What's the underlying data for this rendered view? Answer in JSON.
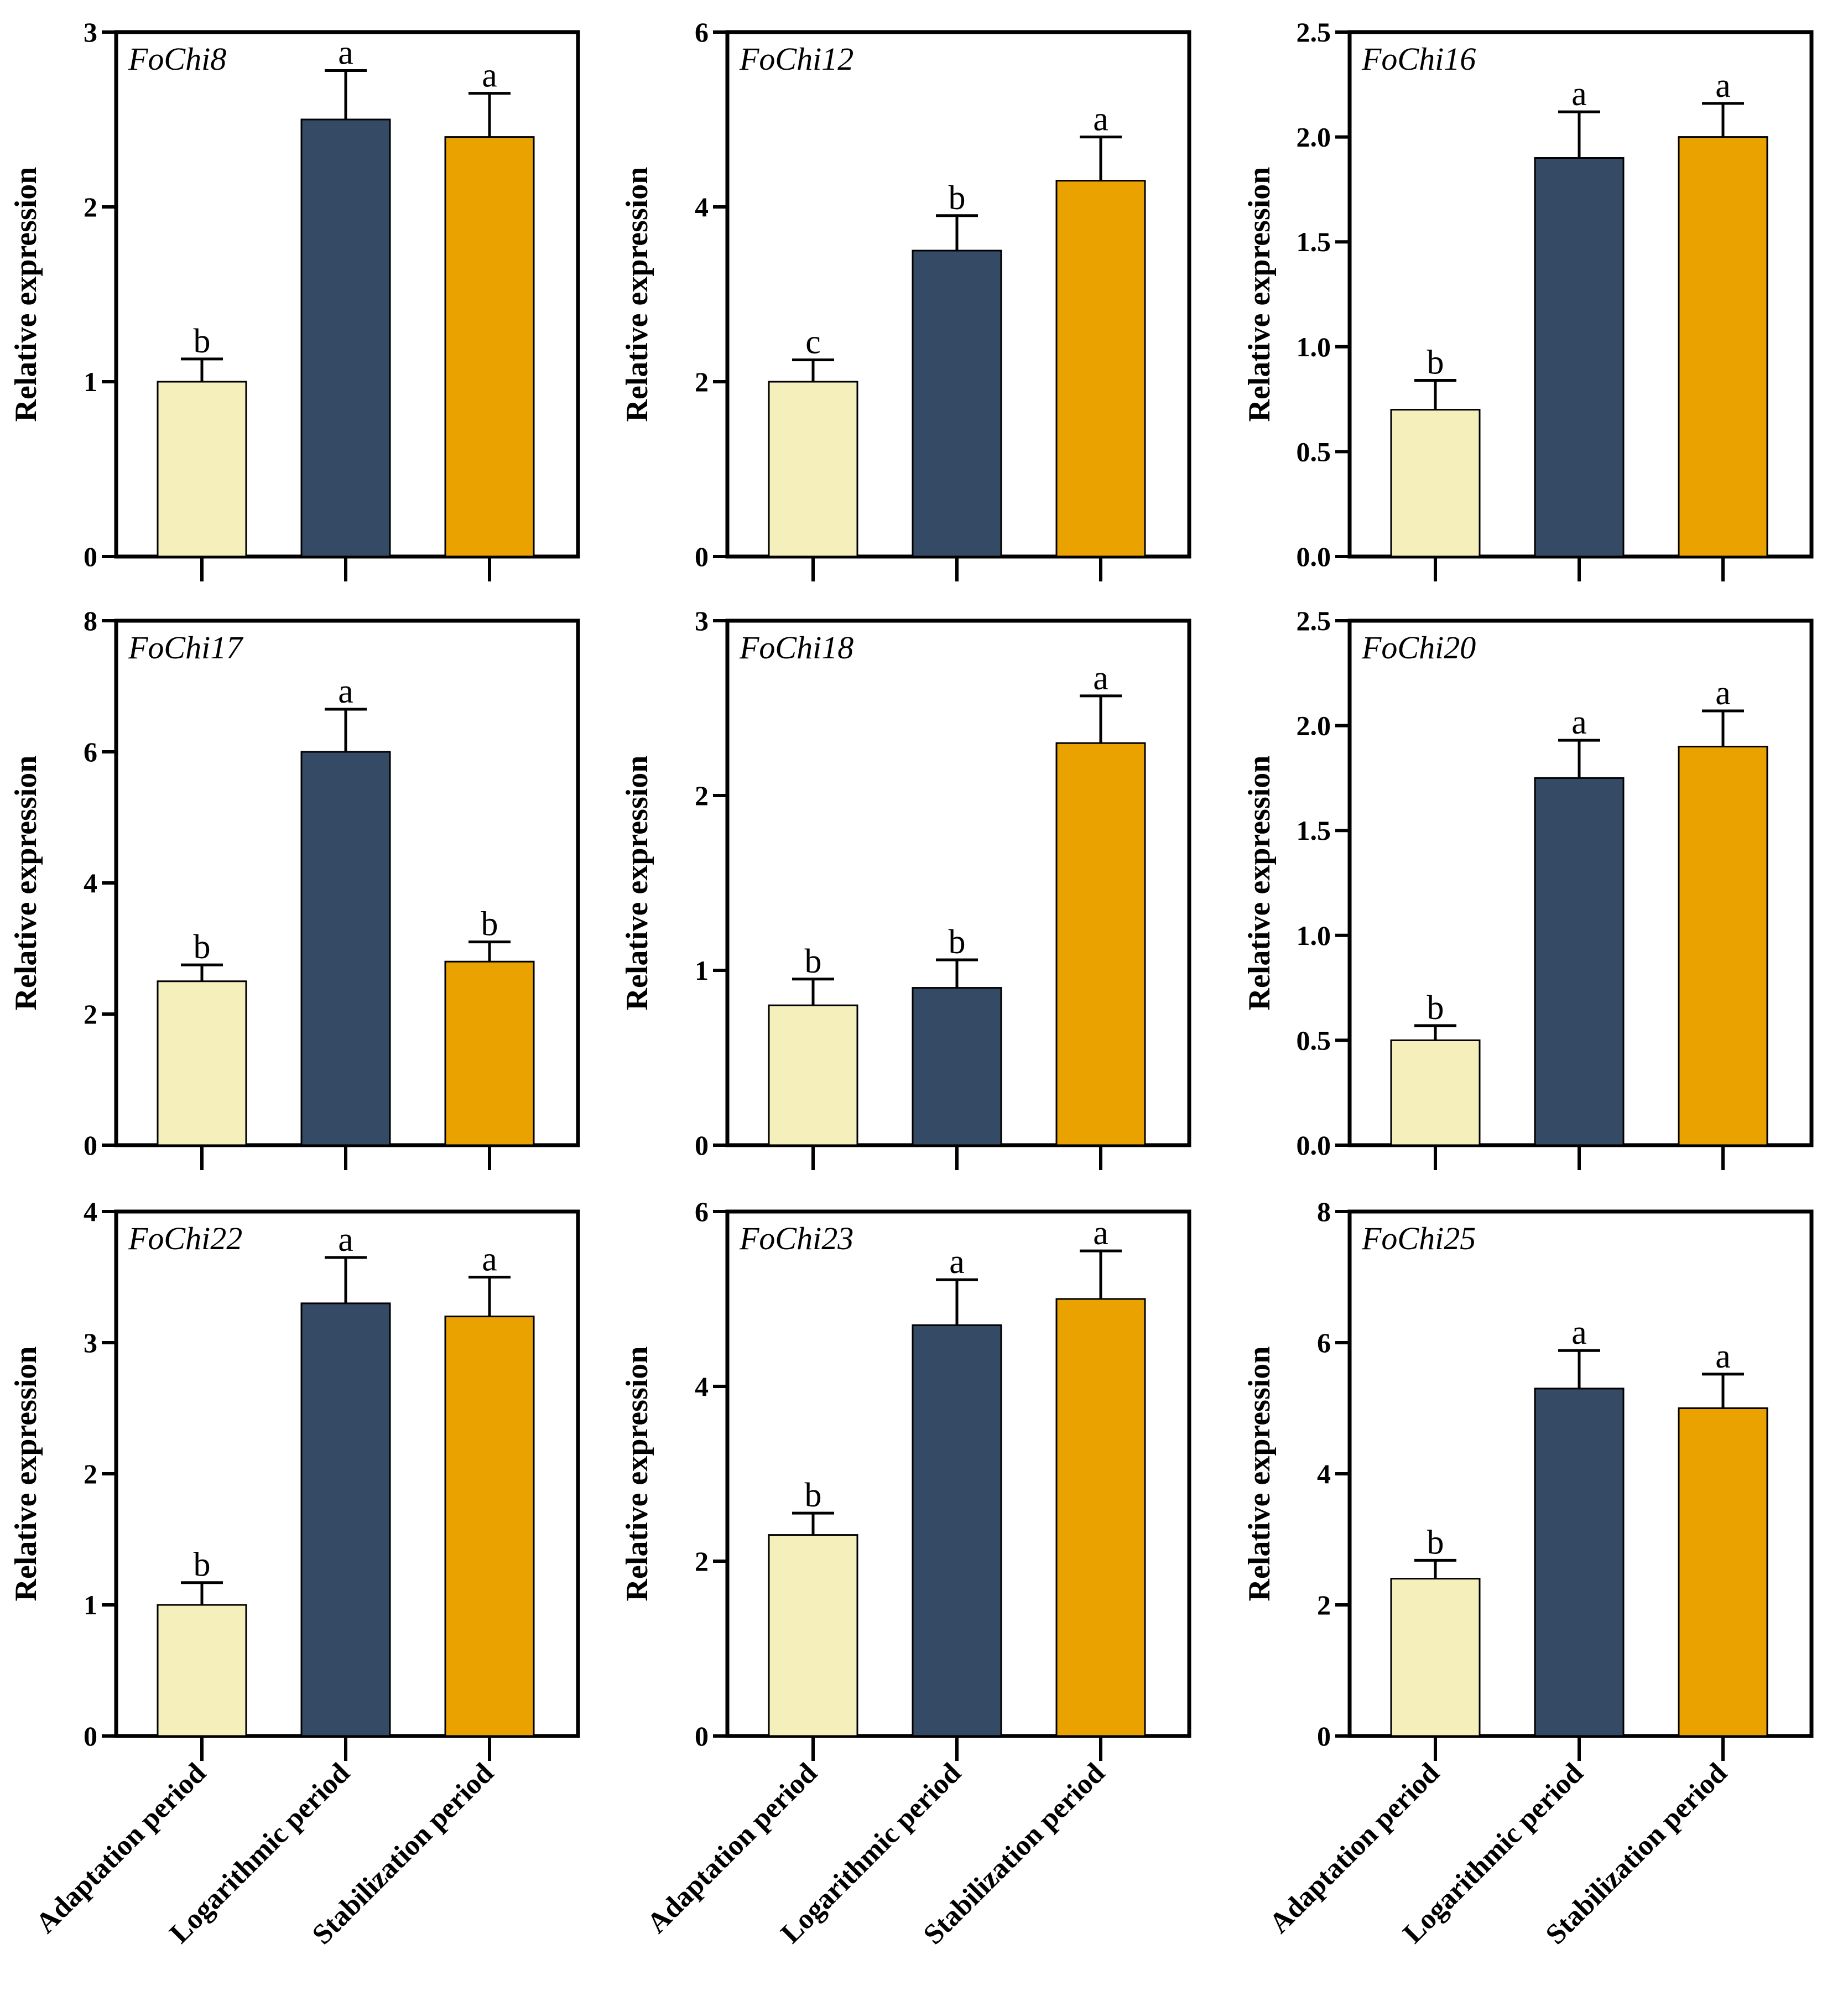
{
  "chart_data": {
    "type": "bar",
    "ylabel": "Relative expression",
    "categories": [
      "Adaptation period",
      "Logarithmic period",
      "Stabilization period"
    ],
    "colors": [
      "#f5f0bb",
      "#354a65",
      "#eaa200"
    ],
    "panels": [
      {
        "title": "FoChi8",
        "ylim": [
          0,
          3
        ],
        "ticks": [
          "0",
          "1",
          "2",
          "3"
        ],
        "values": [
          1.0,
          2.5,
          2.4
        ],
        "errors": [
          0.13,
          0.28,
          0.25
        ],
        "letters": [
          "b",
          "a",
          "a"
        ]
      },
      {
        "title": "FoChi12",
        "ylim": [
          0,
          6
        ],
        "ticks": [
          "0",
          "2",
          "4",
          "6"
        ],
        "values": [
          2.0,
          3.5,
          4.3
        ],
        "errors": [
          0.25,
          0.4,
          0.5
        ],
        "letters": [
          "c",
          "b",
          "a"
        ]
      },
      {
        "title": "FoChi16",
        "ylim": [
          0,
          2.5
        ],
        "ticks": [
          "0.0",
          "0.5",
          "1.0",
          "1.5",
          "2.0",
          "2.5"
        ],
        "values": [
          0.7,
          1.9,
          2.0
        ],
        "errors": [
          0.14,
          0.22,
          0.16
        ],
        "letters": [
          "b",
          "a",
          "a"
        ]
      },
      {
        "title": "FoChi17",
        "ylim": [
          0,
          8
        ],
        "ticks": [
          "0",
          "2",
          "4",
          "6",
          "8"
        ],
        "values": [
          2.5,
          6.0,
          2.8
        ],
        "errors": [
          0.25,
          0.65,
          0.3
        ],
        "letters": [
          "b",
          "a",
          "b"
        ]
      },
      {
        "title": "FoChi18",
        "ylim": [
          0,
          3
        ],
        "ticks": [
          "0",
          "1",
          "2",
          "3"
        ],
        "values": [
          0.8,
          0.9,
          2.3
        ],
        "errors": [
          0.15,
          0.16,
          0.27
        ],
        "letters": [
          "b",
          "b",
          "a"
        ]
      },
      {
        "title": "FoChi20",
        "ylim": [
          0,
          2.5
        ],
        "ticks": [
          "0.0",
          "0.5",
          "1.0",
          "1.5",
          "2.0",
          "2.5"
        ],
        "values": [
          0.5,
          1.75,
          1.9
        ],
        "errors": [
          0.07,
          0.18,
          0.17
        ],
        "letters": [
          "b",
          "a",
          "a"
        ]
      },
      {
        "title": "FoChi22",
        "ylim": [
          0,
          4
        ],
        "ticks": [
          "0",
          "1",
          "2",
          "3",
          "4"
        ],
        "values": [
          1.0,
          3.3,
          3.2
        ],
        "errors": [
          0.17,
          0.35,
          0.3
        ],
        "letters": [
          "b",
          "a",
          "a"
        ]
      },
      {
        "title": "FoChi23",
        "ylim": [
          0,
          6
        ],
        "ticks": [
          "0",
          "2",
          "4",
          "6"
        ],
        "values": [
          2.3,
          4.7,
          5.0
        ],
        "errors": [
          0.25,
          0.52,
          0.55
        ],
        "letters": [
          "b",
          "a",
          "a"
        ]
      },
      {
        "title": "FoChi25",
        "ylim": [
          0,
          8
        ],
        "ticks": [
          "0",
          "2",
          "4",
          "6",
          "8"
        ],
        "values": [
          2.4,
          5.3,
          5.0
        ],
        "errors": [
          0.28,
          0.58,
          0.52
        ],
        "letters": [
          "b",
          "a",
          "a"
        ]
      }
    ]
  }
}
